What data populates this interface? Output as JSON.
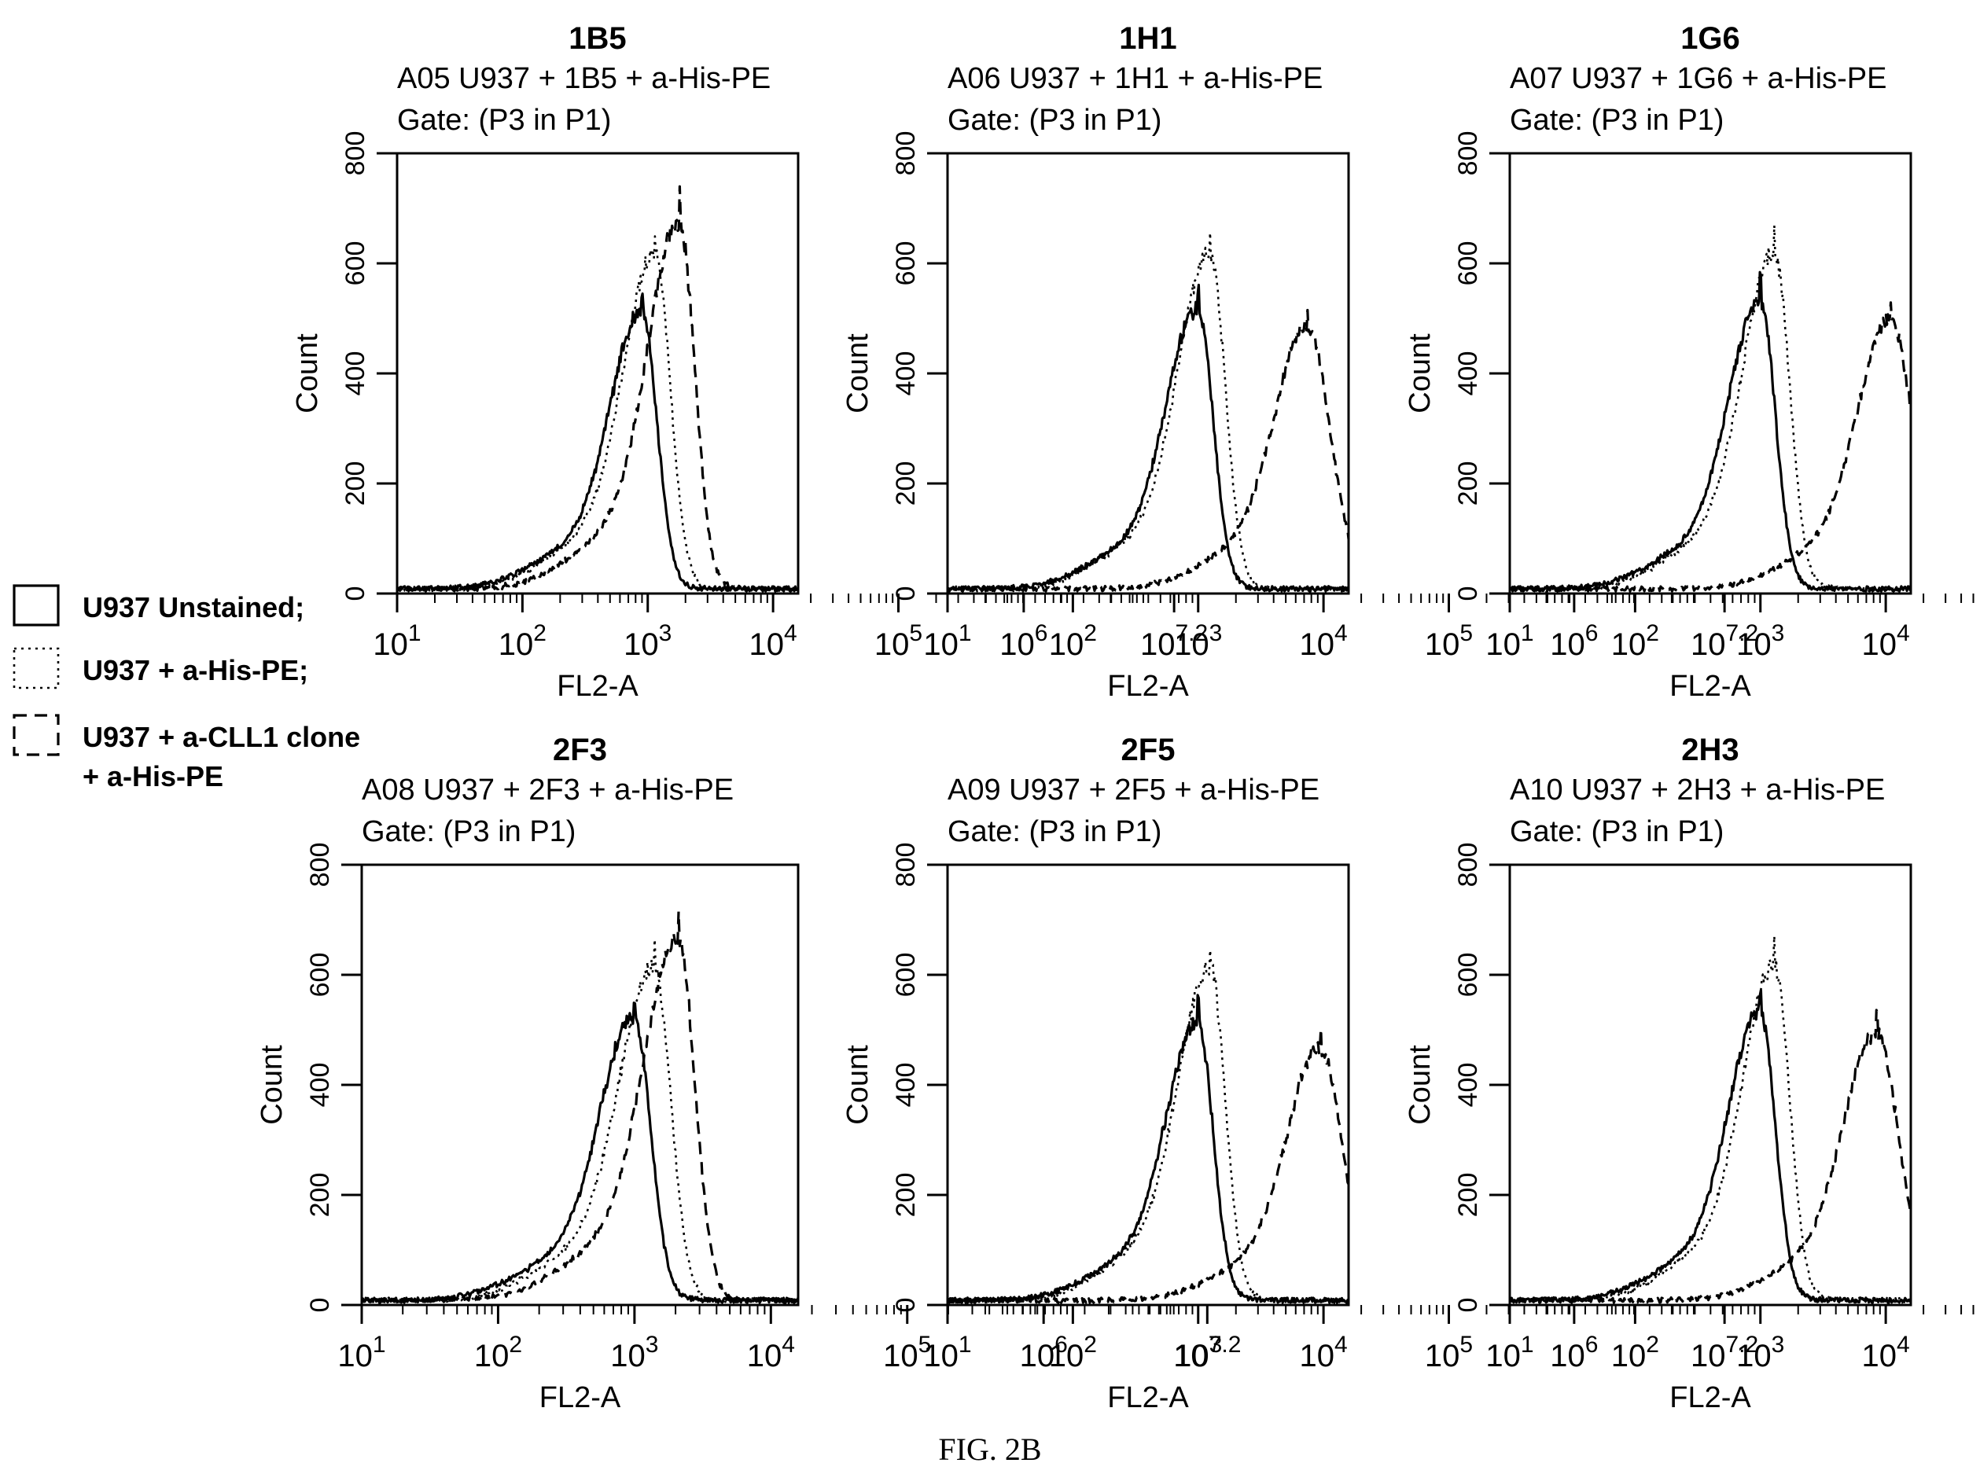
{
  "figure_caption": "FIG. 2B",
  "legend": {
    "entries": [
      {
        "lines": [
          "U937 Unstained;"
        ],
        "style": "solid"
      },
      {
        "lines": [
          "U937 + a-His-PE;"
        ],
        "style": "dotted"
      },
      {
        "lines": [
          "U937 + a-CLL1 clone",
          "+ a-His-PE"
        ],
        "style": "dashed"
      }
    ]
  },
  "chart_data": [
    {
      "type": "line",
      "title": "1B5",
      "subtitle": "A05 U937 + 1B5 + a-His-PE",
      "gate": "Gate: (P3 in P1)",
      "xlabel": "FL2-A",
      "ylabel": "Count",
      "xscale": "log",
      "xlim": [
        10,
        15849
      ],
      "ylim": [
        0,
        800
      ],
      "xticks": [
        {
          "b": "10",
          "e": "1"
        },
        {
          "b": "10",
          "e": "2"
        },
        {
          "b": "10",
          "e": "3"
        },
        {
          "b": "10",
          "e": "4"
        },
        {
          "b": "10",
          "e": "5"
        },
        {
          "b": "10",
          "e": "6"
        },
        {
          "b": "10",
          "e": "7.2"
        }
      ],
      "yticks": [
        "0",
        "200",
        "400",
        "600",
        "800"
      ],
      "series": [
        {
          "style": "solid",
          "peak_x": 900,
          "peak_y": 550
        },
        {
          "style": "dotted",
          "peak_x": 1150,
          "peak_y": 665
        },
        {
          "style": "dashed",
          "peak_x": 1800,
          "peak_y": 725
        }
      ]
    },
    {
      "type": "line",
      "title": "1H1",
      "subtitle": "A06 U937 + 1H1 + a-His-PE",
      "gate": "Gate: (P3 in P1)",
      "xlabel": "FL2-A",
      "ylabel": "Count",
      "xscale": "log",
      "xlim": [
        10,
        15849
      ],
      "ylim": [
        0,
        800
      ],
      "xticks": [
        {
          "b": "10",
          "e": "1"
        },
        {
          "b": "10",
          "e": "2"
        },
        {
          "b": "10",
          "e": "3"
        },
        {
          "b": "10",
          "e": "4"
        },
        {
          "b": "10",
          "e": "5"
        },
        {
          "b": "10",
          "e": "6"
        },
        {
          "b": "10",
          "e": "7.2"
        }
      ],
      "yticks": [
        "0",
        "200",
        "400",
        "600",
        "800"
      ],
      "series": [
        {
          "style": "solid",
          "peak_x": 1000,
          "peak_y": 555
        },
        {
          "style": "dotted",
          "peak_x": 1250,
          "peak_y": 665
        },
        {
          "style": "dashed",
          "peak_x": 7500,
          "peak_y": 520
        }
      ]
    },
    {
      "type": "line",
      "title": "1G6",
      "subtitle": "A07 U937 + 1G6 + a-His-PE",
      "gate": "Gate: (P3 in P1)",
      "xlabel": "FL2-A",
      "ylabel": "Count",
      "xscale": "log",
      "xlim": [
        10,
        15849
      ],
      "ylim": [
        0,
        800
      ],
      "xticks": [
        {
          "b": "10",
          "e": "1"
        },
        {
          "b": "10",
          "e": "2"
        },
        {
          "b": "10",
          "e": "3"
        },
        {
          "b": "10",
          "e": "4"
        },
        {
          "b": "10",
          "e": "5"
        },
        {
          "b": "10",
          "e": "6"
        },
        {
          "b": "10",
          "e": "7.2"
        }
      ],
      "yticks": [
        "0",
        "200",
        "400",
        "600",
        "800"
      ],
      "series": [
        {
          "style": "solid",
          "peak_x": 1000,
          "peak_y": 570
        },
        {
          "style": "dotted",
          "peak_x": 1300,
          "peak_y": 665
        },
        {
          "style": "dashed",
          "peak_x": 11000,
          "peak_y": 535
        }
      ]
    },
    {
      "type": "line",
      "title": "2F3",
      "subtitle": "A08 U937 + 2F3 + a-His-PE",
      "gate": "Gate: (P3 in P1)",
      "xlabel": "FL2-A",
      "ylabel": "Count",
      "xscale": "log",
      "xlim": [
        10,
        15849
      ],
      "ylim": [
        0,
        800
      ],
      "xticks": [
        {
          "b": "10",
          "e": "1"
        },
        {
          "b": "10",
          "e": "2"
        },
        {
          "b": "10",
          "e": "3"
        },
        {
          "b": "10",
          "e": "4"
        },
        {
          "b": "10",
          "e": "5"
        },
        {
          "b": "10",
          "e": "6"
        },
        {
          "b": "10",
          "e": "7.2"
        }
      ],
      "yticks": [
        "0",
        "200",
        "400",
        "600",
        "800"
      ],
      "series": [
        {
          "style": "solid",
          "peak_x": 1000,
          "peak_y": 560
        },
        {
          "style": "dotted",
          "peak_x": 1400,
          "peak_y": 665
        },
        {
          "style": "dashed",
          "peak_x": 2100,
          "peak_y": 720
        }
      ]
    },
    {
      "type": "line",
      "title": "2F5",
      "subtitle": "A09 U937 + 2F5 + a-His-PE",
      "gate": "Gate: (P3 in P1)",
      "xlabel": "FL2-A",
      "ylabel": "Count",
      "xscale": "log",
      "xlim": [
        10,
        15849
      ],
      "ylim": [
        0,
        800
      ],
      "xticks": [
        {
          "b": "10",
          "e": "1"
        },
        {
          "b": "10",
          "e": "2"
        },
        {
          "b": "10",
          "e": "3"
        },
        {
          "b": "10",
          "e": "4"
        },
        {
          "b": "10",
          "e": "5"
        },
        {
          "b": "10",
          "e": "6"
        },
        {
          "b": "10",
          "e": "7.2"
        }
      ],
      "yticks": [
        "0",
        "200",
        "400",
        "600",
        "800"
      ],
      "series": [
        {
          "style": "solid",
          "peak_x": 1000,
          "peak_y": 550
        },
        {
          "style": "dotted",
          "peak_x": 1250,
          "peak_y": 660
        },
        {
          "style": "dashed",
          "peak_x": 9500,
          "peak_y": 500
        }
      ]
    },
    {
      "type": "line",
      "title": "2H3",
      "subtitle": "A10 U937 + 2H3 + a-His-PE",
      "gate": "Gate: (P3 in P1)",
      "xlabel": "FL2-A",
      "ylabel": "Count",
      "xscale": "log",
      "xlim": [
        10,
        15849
      ],
      "ylim": [
        0,
        800
      ],
      "xticks": [
        {
          "b": "10",
          "e": "1"
        },
        {
          "b": "10",
          "e": "2"
        },
        {
          "b": "10",
          "e": "3"
        },
        {
          "b": "10",
          "e": "4"
        },
        {
          "b": "10",
          "e": "5"
        },
        {
          "b": "10",
          "e": "6"
        },
        {
          "b": "10",
          "e": "7.2"
        }
      ],
      "yticks": [
        "0",
        "200",
        "400",
        "600",
        "800"
      ],
      "series": [
        {
          "style": "solid",
          "peak_x": 1000,
          "peak_y": 575
        },
        {
          "style": "dotted",
          "peak_x": 1300,
          "peak_y": 665
        },
        {
          "style": "dashed",
          "peak_x": 8500,
          "peak_y": 530
        }
      ]
    }
  ]
}
